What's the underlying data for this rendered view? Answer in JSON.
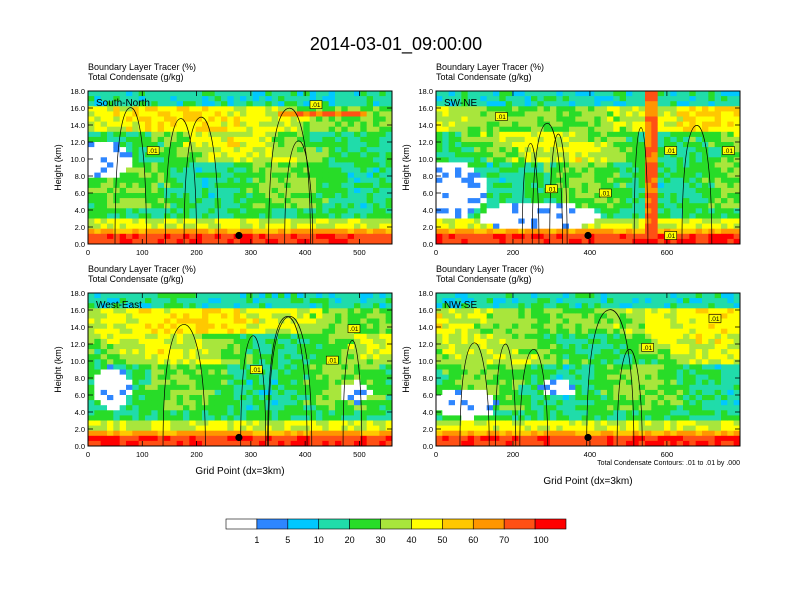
{
  "title": "2014-03-01_09:00:00",
  "chart_data": [
    {
      "type": "heatmap",
      "subtitle_line1": "Boundary Layer Tracer   (%)",
      "subtitle_line2": "Total Condensate   (g/kg)",
      "panel_label": "South-North",
      "ylabel": "Height (km)",
      "xlabel": "",
      "xlim": [
        0,
        560
      ],
      "ylim": [
        0,
        18
      ],
      "x_ticks": [
        "0",
        "100",
        "200",
        "300",
        "400",
        "500"
      ],
      "y_ticks": [
        "0.0",
        "2.0",
        "4.0",
        "6.0",
        "8.0",
        "10.0",
        "12.0",
        "14.0",
        "16.0",
        "18.0"
      ],
      "contour_labels": [
        {
          "text": ".01",
          "x": 120,
          "y": 11.0
        },
        {
          "text": ".01",
          "x": 420,
          "y": 16.4
        }
      ],
      "marker": {
        "x": 278,
        "y": 1.0
      }
    },
    {
      "type": "heatmap",
      "subtitle_line1": "Boundary Layer Tracer   (%)",
      "subtitle_line2": "Total Condensate   (g/kg)",
      "panel_label": "SW-NE",
      "ylabel": "Height (km)",
      "xlabel": "",
      "xlim": [
        0,
        790
      ],
      "ylim": [
        0,
        18
      ],
      "x_ticks": [
        "0",
        "200",
        "400",
        "600"
      ],
      "y_ticks": [
        "0.0",
        "2.0",
        "4.0",
        "6.0",
        "8.0",
        "10.0",
        "12.0",
        "14.0",
        "16.0",
        "18.0"
      ],
      "contour_labels": [
        {
          "text": ".01",
          "x": 170,
          "y": 15.0
        },
        {
          "text": ".01",
          "x": 300,
          "y": 6.5
        },
        {
          "text": ".01",
          "x": 440,
          "y": 6.0
        },
        {
          "text": ".01",
          "x": 610,
          "y": 11.0
        },
        {
          "text": ".01",
          "x": 760,
          "y": 11.0
        },
        {
          "text": ".01",
          "x": 610,
          "y": 1.0
        }
      ],
      "marker": {
        "x": 395,
        "y": 1.0
      }
    },
    {
      "type": "heatmap",
      "subtitle_line1": "Boundary Layer Tracer   (%)",
      "subtitle_line2": "Total Condensate   (g/kg)",
      "panel_label": "West-East",
      "ylabel": "Height (km)",
      "xlabel": "Grid Point (dx=3km)",
      "xlim": [
        0,
        560
      ],
      "ylim": [
        0,
        18
      ],
      "x_ticks": [
        "0",
        "100",
        "200",
        "300",
        "400",
        "500"
      ],
      "y_ticks": [
        "0.0",
        "2.0",
        "4.0",
        "6.0",
        "8.0",
        "10.0",
        "12.0",
        "14.0",
        "16.0",
        "18.0"
      ],
      "contour_labels": [
        {
          "text": ".01",
          "x": 310,
          "y": 9.0
        },
        {
          "text": ".01",
          "x": 450,
          "y": 10.1
        },
        {
          "text": ".01",
          "x": 490,
          "y": 13.8
        }
      ],
      "marker": {
        "x": 278,
        "y": 1.0
      }
    },
    {
      "type": "heatmap",
      "subtitle_line1": "Boundary Layer Tracer   (%)",
      "subtitle_line2": "Total Condensate   (g/kg)",
      "panel_label": "NW-SE",
      "ylabel": "Height (km)",
      "xlabel": "Grid Point (dx=3km)",
      "xlim": [
        0,
        790
      ],
      "ylim": [
        0,
        18
      ],
      "x_ticks": [
        "0",
        "200",
        "400",
        "600"
      ],
      "y_ticks": [
        "0.0",
        "2.0",
        "4.0",
        "6.0",
        "8.0",
        "10.0",
        "12.0",
        "14.0",
        "16.0",
        "18.0"
      ],
      "contour_labels": [
        {
          "text": ".01",
          "x": 550,
          "y": 11.6
        },
        {
          "text": ".01",
          "x": 725,
          "y": 15.0
        }
      ],
      "marker": {
        "x": 395,
        "y": 1.0
      },
      "footnote": "Total Condensate Contours: .01 to .01 by .000"
    }
  ],
  "colorbar": {
    "ticks": [
      "1",
      "5",
      "10",
      "20",
      "30",
      "40",
      "50",
      "60",
      "70",
      "100"
    ],
    "colors": [
      "#ffffff",
      "#2e86ff",
      "#00c8ff",
      "#20dcaa",
      "#28dc28",
      "#a8e63c",
      "#ffff00",
      "#ffc800",
      "#ff9600",
      "#ff5014",
      "#ff0000"
    ]
  }
}
